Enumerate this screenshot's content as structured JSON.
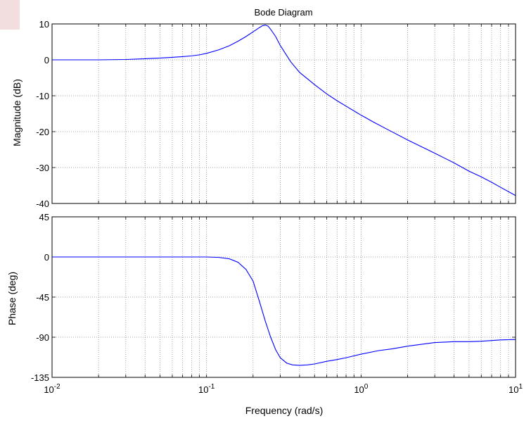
{
  "chart_data": {
    "type": "line",
    "title": "Bode Diagram",
    "xlabel": "Frequency  (rad/s)",
    "xscale": "log",
    "xlim": [
      0.01,
      10
    ],
    "x_ticks": [
      {
        "base": "10",
        "exp": "-2"
      },
      {
        "base": "10",
        "exp": "-1"
      },
      {
        "base": "10",
        "exp": "0"
      },
      {
        "base": "10",
        "exp": "1"
      }
    ],
    "grid": true,
    "line_color": "#0000ff",
    "panels": [
      {
        "id": "magnitude",
        "ylabel": "Magnitude (dB)",
        "ylim": [
          -40,
          10
        ],
        "yticks": [
          "10",
          "0",
          "-10",
          "-20",
          "-30",
          "-40"
        ],
        "series": [
          {
            "x": [
              0.01,
              0.015,
              0.02,
              0.03,
              0.04,
              0.05,
              0.06,
              0.07,
              0.08,
              0.09,
              0.1,
              0.12,
              0.14,
              0.16,
              0.18,
              0.2,
              0.21,
              0.22,
              0.23,
              0.24,
              0.25,
              0.26,
              0.28,
              0.3,
              0.35,
              0.4,
              0.5,
              0.6,
              0.7,
              0.8,
              1.0,
              1.2,
              1.5,
              2.0,
              3.0,
              4.0,
              5.0,
              6.0,
              7.0,
              8.0,
              10.0
            ],
            "y": [
              0,
              0,
              0,
              0.1,
              0.3,
              0.5,
              0.7,
              0.9,
              1.1,
              1.4,
              1.8,
              2.8,
              3.9,
              5.2,
              6.5,
              7.8,
              8.4,
              9.0,
              9.5,
              9.7,
              9.4,
              8.5,
              6.5,
              4.0,
              -0.5,
              -3.5,
              -6.9,
              -9.5,
              -11.4,
              -12.9,
              -15.4,
              -17.3,
              -19.5,
              -22.3,
              -26.0,
              -28.7,
              -31.0,
              -32.6,
              -34.1,
              -35.5,
              -37.8
            ]
          }
        ]
      },
      {
        "id": "phase",
        "ylabel": "Phase (deg)",
        "ylim": [
          -135,
          45
        ],
        "yticks": [
          "45",
          "0",
          "-45",
          "-90",
          "-135"
        ],
        "series": [
          {
            "x": [
              0.01,
              0.02,
              0.05,
              0.1,
              0.12,
              0.14,
              0.15,
              0.16,
              0.18,
              0.2,
              0.22,
              0.24,
              0.26,
              0.28,
              0.3,
              0.33,
              0.36,
              0.4,
              0.45,
              0.5,
              0.6,
              0.7,
              0.8,
              1.0,
              1.3,
              1.6,
              2.0,
              3.0,
              4.0,
              5.0,
              6.0,
              8.0,
              10.0
            ],
            "y": [
              0,
              0,
              0,
              0,
              -0.5,
              -2,
              -4,
              -6,
              -14,
              -27,
              -50,
              -72,
              -90,
              -104,
              -113,
              -119,
              -121,
              -121.5,
              -121,
              -120,
              -117,
              -115,
              -113,
              -109,
              -105,
              -103,
              -100,
              -96,
              -95,
              -95,
              -94.5,
              -93,
              -92.5
            ]
          }
        ]
      }
    ]
  }
}
